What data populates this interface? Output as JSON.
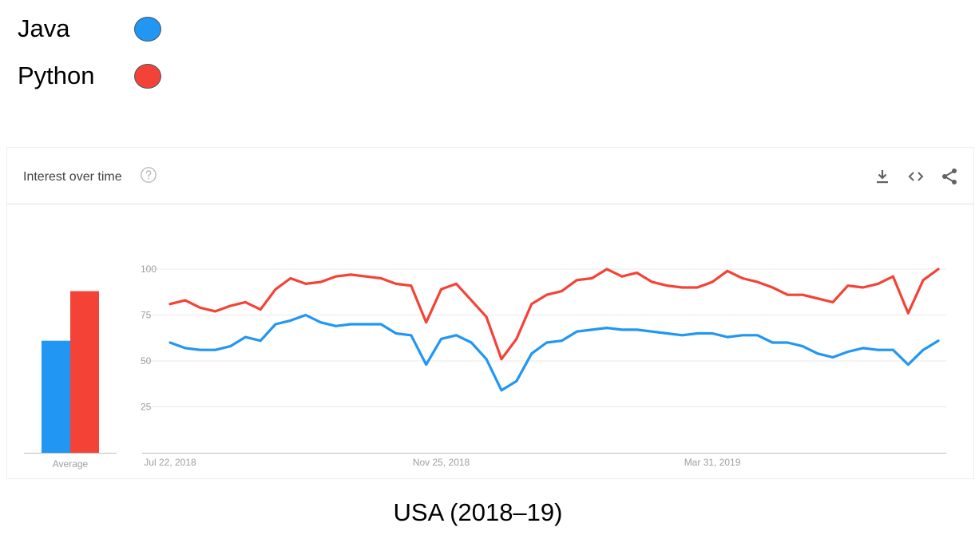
{
  "legend": {
    "items": [
      {
        "label": "Java",
        "color": "#2196f3"
      },
      {
        "label": "Python",
        "color": "#f44336"
      }
    ]
  },
  "card": {
    "title": "Interest over time",
    "icons": [
      "help-icon",
      "download-icon",
      "embed-icon",
      "share-icon"
    ]
  },
  "caption": "USA (2018–19)",
  "chart_data": [
    {
      "type": "bar",
      "categories": [
        "Average"
      ],
      "series": [
        {
          "name": "Java",
          "values": [
            61
          ],
          "color": "#2196f3"
        },
        {
          "name": "Python",
          "values": [
            88
          ],
          "color": "#f44336"
        }
      ],
      "ylim": [
        0,
        100
      ]
    },
    {
      "type": "line",
      "x_start": "2018-07-22",
      "x_step_weeks": 1,
      "xtick_labels": [
        "Jul 22, 2018",
        "Nov 25, 2018",
        "Mar 31, 2019"
      ],
      "xtick_index": [
        0,
        18,
        36
      ],
      "ytick_labels": [
        "25",
        "50",
        "75",
        "100"
      ],
      "yticks": [
        25,
        50,
        75,
        100
      ],
      "ylim": [
        0,
        100
      ],
      "grid": true,
      "series": [
        {
          "name": "Java",
          "color": "#2196f3",
          "values": [
            60,
            57,
            56,
            56,
            58,
            63,
            61,
            70,
            72,
            75,
            71,
            69,
            70,
            70,
            70,
            65,
            64,
            48,
            62,
            64,
            60,
            51,
            34,
            39,
            54,
            60,
            61,
            66,
            67,
            68,
            67,
            67,
            66,
            65,
            64,
            65,
            65,
            63,
            64,
            64,
            60,
            60,
            58,
            54,
            52,
            55,
            57,
            56,
            56,
            48,
            56,
            61
          ]
        },
        {
          "name": "Python",
          "color": "#f44336",
          "values": [
            81,
            83,
            79,
            77,
            80,
            82,
            78,
            89,
            95,
            92,
            93,
            96,
            97,
            96,
            95,
            92,
            91,
            71,
            89,
            92,
            83,
            74,
            51,
            62,
            81,
            86,
            88,
            94,
            95,
            100,
            96,
            98,
            93,
            91,
            90,
            90,
            93,
            99,
            95,
            93,
            90,
            86,
            86,
            84,
            82,
            91,
            90,
            92,
            96,
            76,
            94,
            100
          ]
        }
      ]
    }
  ]
}
